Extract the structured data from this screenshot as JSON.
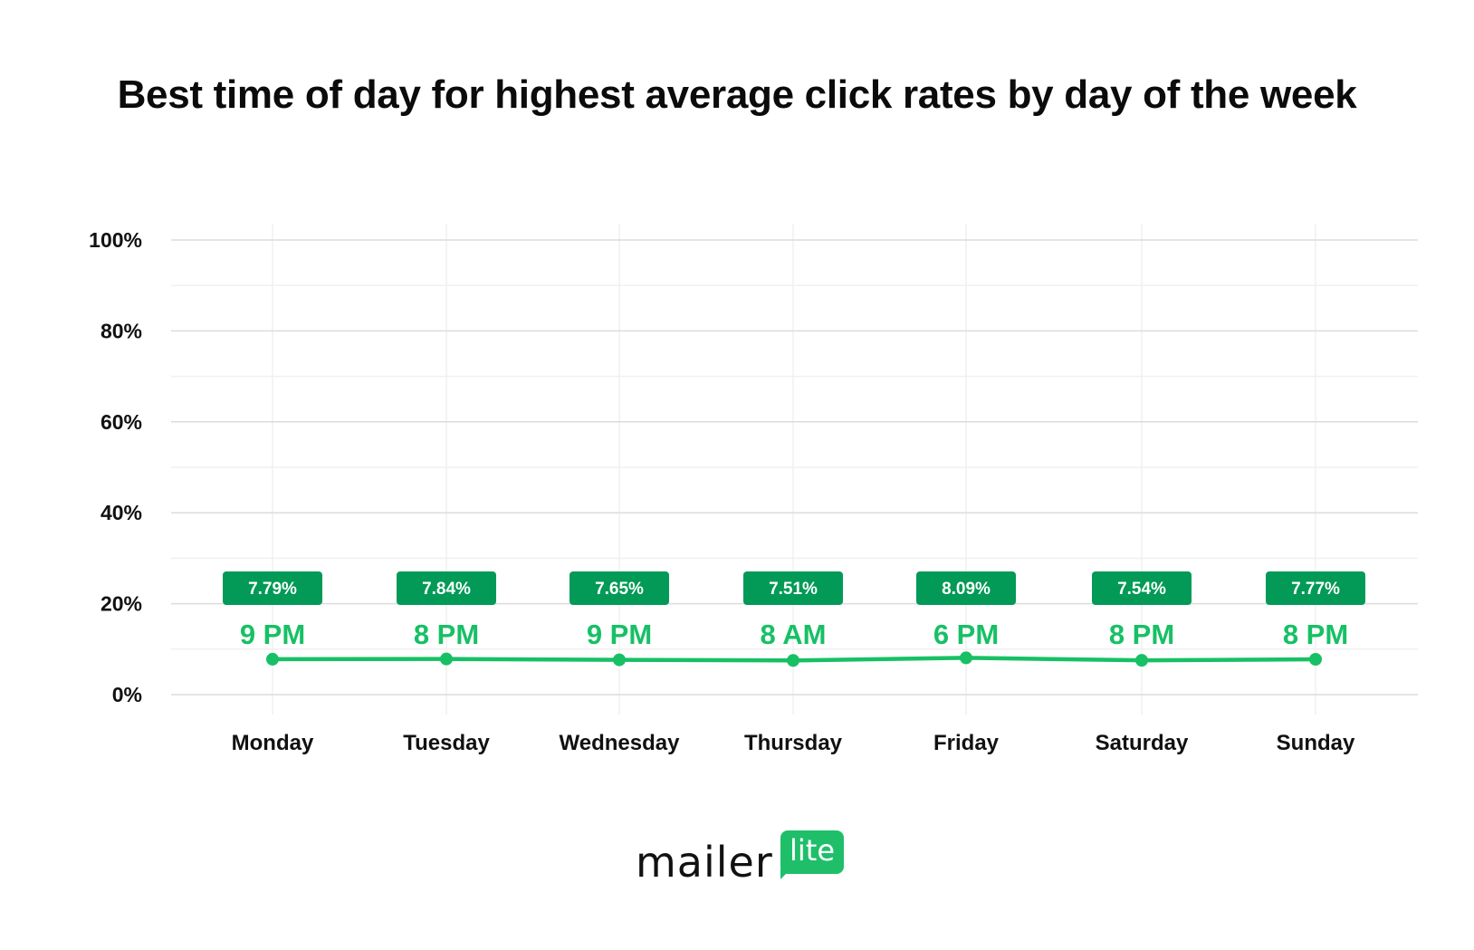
{
  "chart_data": {
    "type": "line",
    "title": "Best time of day for highest average click rates by day of the week",
    "xlabel": "",
    "ylabel": "",
    "categories": [
      "Monday",
      "Tuesday",
      "Wednesday",
      "Thursday",
      "Friday",
      "Saturday",
      "Sunday"
    ],
    "values": [
      7.79,
      7.84,
      7.65,
      7.51,
      8.09,
      7.54,
      7.77
    ],
    "value_labels": [
      "7.79%",
      "7.84%",
      "7.65%",
      "7.51%",
      "8.09%",
      "7.54%",
      "7.77%"
    ],
    "time_labels": [
      "9 PM",
      "8 PM",
      "9 PM",
      "8 AM",
      "6 PM",
      "8 PM",
      "8 PM"
    ],
    "ylim": [
      0,
      100
    ],
    "yticks": [
      0,
      20,
      40,
      60,
      80,
      100
    ],
    "ytick_labels": [
      "0%",
      "20%",
      "40%",
      "60%",
      "80%",
      "100%"
    ],
    "grid": true,
    "colors": {
      "line": "#17c065",
      "badge": "#029a56",
      "time": "#17c065",
      "grid": "#dcdcdc",
      "minor_grid": "#f0f0f0"
    }
  },
  "brand": {
    "logo_text": "mailerlite"
  }
}
